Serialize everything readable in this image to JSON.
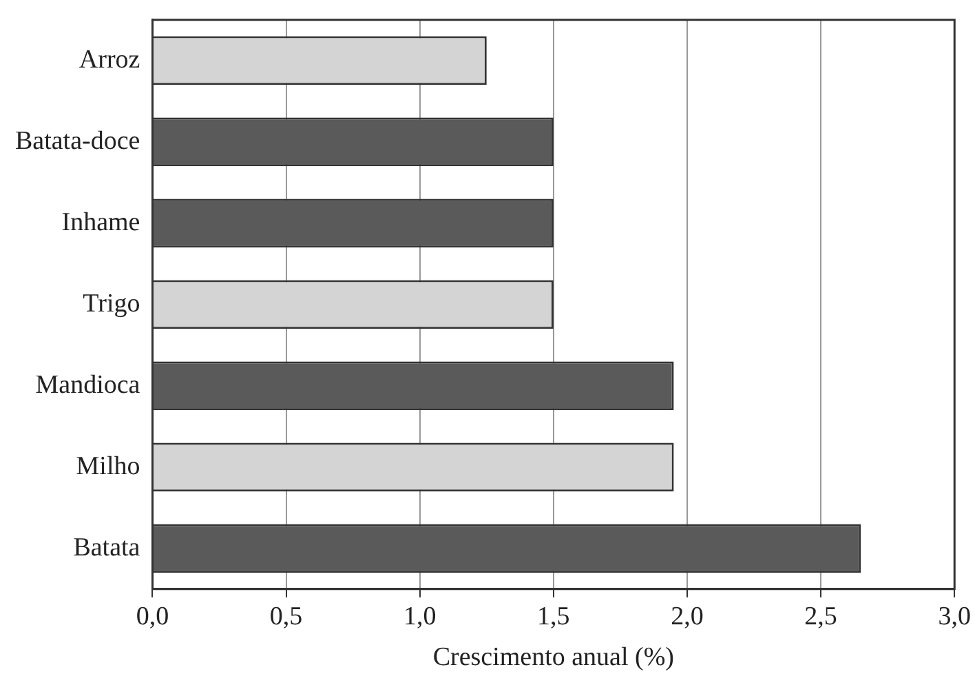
{
  "chart_data": {
    "type": "bar",
    "orientation": "horizontal",
    "xlabel": "Crescimento anual (%)",
    "categories": [
      "Arroz",
      "Batata-doce",
      "Inhame",
      "Trigo",
      "Mandioca",
      "Milho",
      "Batata"
    ],
    "values": [
      1.25,
      1.5,
      1.5,
      1.5,
      1.95,
      1.95,
      2.65
    ],
    "colors": [
      "#d4d4d4",
      "#5a5a5a",
      "#5a5a5a",
      "#d4d4d4",
      "#5a5a5a",
      "#d4d4d4",
      "#5a5a5a"
    ],
    "xlim": [
      0,
      3
    ],
    "xticks": [
      {
        "value": 0,
        "label": "0,0"
      },
      {
        "value": 0.5,
        "label": "0,5"
      },
      {
        "value": 1,
        "label": "1,0"
      },
      {
        "value": 1.5,
        "label": "1,5"
      },
      {
        "value": 2,
        "label": "2,0"
      },
      {
        "value": 2.5,
        "label": "2,5"
      },
      {
        "value": 3,
        "label": "3,0"
      }
    ],
    "grid": "x",
    "legend": false
  }
}
